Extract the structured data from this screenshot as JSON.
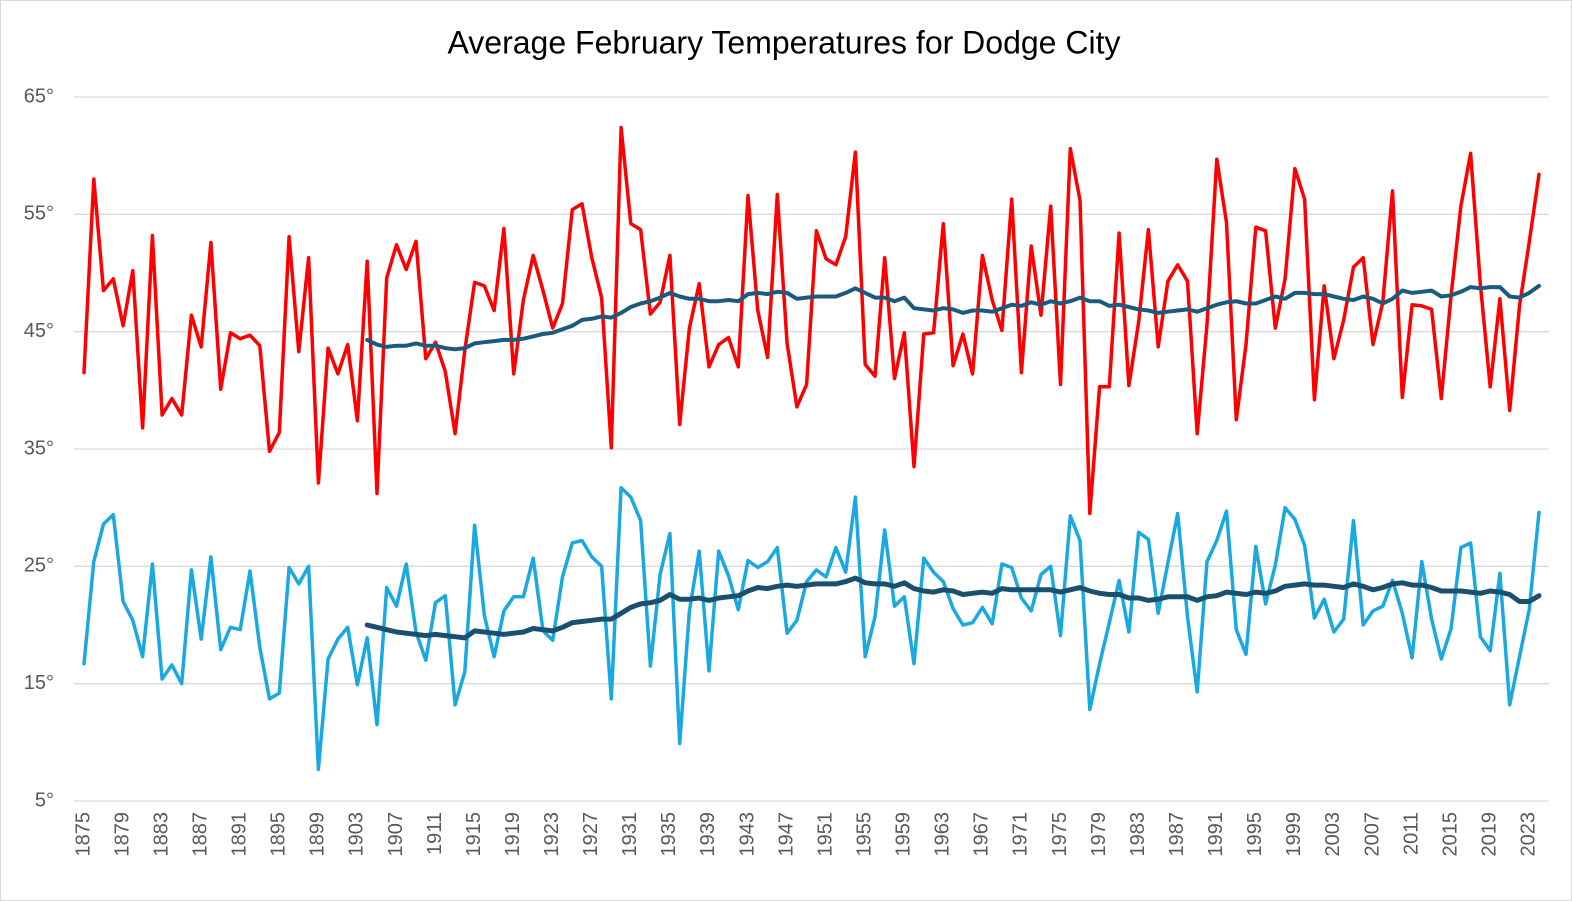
{
  "chart_data": {
    "type": "line",
    "title": "Average February  Temperatures for Dodge City",
    "x": [
      1875,
      1876,
      1877,
      1878,
      1879,
      1880,
      1881,
      1882,
      1883,
      1884,
      1885,
      1886,
      1887,
      1888,
      1889,
      1890,
      1891,
      1892,
      1893,
      1894,
      1895,
      1896,
      1897,
      1898,
      1899,
      1900,
      1901,
      1902,
      1903,
      1904,
      1905,
      1906,
      1907,
      1908,
      1909,
      1910,
      1911,
      1912,
      1913,
      1914,
      1915,
      1916,
      1917,
      1918,
      1919,
      1920,
      1921,
      1922,
      1923,
      1924,
      1925,
      1926,
      1927,
      1928,
      1929,
      1930,
      1931,
      1932,
      1933,
      1934,
      1935,
      1936,
      1937,
      1938,
      1939,
      1940,
      1941,
      1942,
      1943,
      1944,
      1945,
      1946,
      1947,
      1948,
      1949,
      1950,
      1951,
      1952,
      1953,
      1954,
      1955,
      1956,
      1957,
      1958,
      1959,
      1960,
      1961,
      1962,
      1963,
      1964,
      1965,
      1966,
      1967,
      1968,
      1969,
      1970,
      1971,
      1972,
      1973,
      1974,
      1975,
      1976,
      1977,
      1978,
      1979,
      1980,
      1981,
      1982,
      1983,
      1984,
      1985,
      1986,
      1987,
      1988,
      1989,
      1990,
      1991,
      1992,
      1993,
      1994,
      1995,
      1996,
      1997,
      1998,
      1999,
      2000,
      2001,
      2002,
      2003,
      2004,
      2005,
      2006,
      2007,
      2008,
      2009,
      2010,
      2011,
      2012,
      2013,
      2014,
      2015,
      2016,
      2017,
      2018,
      2019,
      2020,
      2021,
      2022,
      2023,
      2024
    ],
    "xlim": [
      1875,
      2024
    ],
    "xticks": [
      1875,
      1879,
      1883,
      1887,
      1891,
      1895,
      1899,
      1903,
      1907,
      1911,
      1915,
      1919,
      1923,
      1927,
      1931,
      1935,
      1939,
      1943,
      1947,
      1951,
      1955,
      1959,
      1963,
      1967,
      1971,
      1975,
      1979,
      1983,
      1987,
      1991,
      1995,
      1999,
      2003,
      2007,
      2011,
      2015,
      2019,
      2023
    ],
    "ylim": [
      5,
      65
    ],
    "yticks": [
      {
        "value": 5,
        "label": "5°"
      },
      {
        "value": 15,
        "label": "15°"
      },
      {
        "value": 25,
        "label": "25°"
      },
      {
        "value": 35,
        "label": "35°"
      },
      {
        "value": 45,
        "label": "45°"
      },
      {
        "value": 55,
        "label": "55°"
      },
      {
        "value": 65,
        "label": "65°"
      }
    ],
    "grid": true,
    "series": [
      {
        "color": "#ff0000",
        "width": 3.5,
        "values": [
          41.5,
          58,
          48.5,
          49.5,
          45.5,
          50.2,
          36.8,
          53.2,
          37.9,
          39.3,
          37.9,
          46.4,
          43.7,
          52.6,
          40.1,
          44.9,
          44.4,
          44.7,
          43.8,
          34.8,
          36.4,
          53.1,
          43.3,
          51.3,
          32.1,
          43.6,
          41.4,
          43.9,
          37.4,
          51,
          31.2,
          49.6,
          52.4,
          50.3,
          52.7,
          42.7,
          44.1,
          41.6,
          36.3,
          43.4,
          49.2,
          48.9,
          46.8,
          53.8,
          41.4,
          47.7,
          51.5,
          48.5,
          45.3,
          47.4,
          55.4,
          55.9,
          51.3,
          47.9,
          35.1,
          62.4,
          54.2,
          53.7,
          46.5,
          47.5,
          51.5,
          37.1,
          45.3,
          49.1,
          42,
          43.9,
          44.5,
          42,
          56.6,
          46.8,
          42.8,
          56.7,
          44,
          38.6,
          40.5,
          53.6,
          51.2,
          50.7,
          53.1,
          60.3,
          42.2,
          41.2,
          51.3,
          41,
          44.9,
          33.5,
          44.8,
          44.9,
          54.2,
          42.1,
          44.8,
          41.4,
          51.5,
          47.7,
          45.1,
          56.3,
          41.5,
          52.3,
          46.4,
          55.7,
          40.5,
          60.6,
          56.2,
          29.5,
          40.3,
          40.3,
          53.4,
          40.4,
          45.8,
          53.7,
          43.7,
          49.3,
          50.7,
          49.3,
          36.3,
          45.6,
          59.7,
          54.3,
          37.5,
          43.9,
          53.9,
          53.6,
          45.3,
          49.5,
          58.9,
          56.3,
          39.2,
          48.9,
          42.7,
          46,
          50.5,
          51.3,
          43.9,
          47.5,
          57,
          39.4,
          47.3,
          47.2,
          46.9,
          39.3,
          48.1,
          55.7,
          60.2,
          49,
          40.3,
          47.8,
          38.3,
          47.2,
          52.6,
          58.4
        ]
      },
      {
        "color": "#19a9e0",
        "width": 3.5,
        "values": [
          16.7,
          25.4,
          28.6,
          29.4,
          22,
          20.4,
          17.3,
          25.2,
          15.4,
          16.6,
          15,
          24.7,
          18.8,
          25.8,
          17.9,
          19.8,
          19.6,
          24.6,
          18.1,
          13.7,
          14.2,
          24.9,
          23.5,
          25,
          7.7,
          17.1,
          18.8,
          19.8,
          14.9,
          18.9,
          11.5,
          23.2,
          21.6,
          25.2,
          19.4,
          17,
          21.9,
          22.5,
          13.2,
          16,
          28.5,
          20.8,
          17.3,
          21.2,
          22.4,
          22.4,
          25.7,
          19.5,
          18.7,
          24.1,
          27,
          27.2,
          25.8,
          25,
          13.7,
          31.7,
          30.9,
          28.9,
          16.5,
          24.3,
          27.8,
          9.9,
          21.2,
          26.3,
          16.1,
          26.3,
          24.2,
          21.3,
          25.5,
          24.9,
          25.4,
          26.6,
          19.3,
          20.4,
          23.7,
          24.7,
          24.1,
          26.6,
          24.5,
          30.9,
          17.3,
          20.7,
          28.1,
          21.6,
          22.4,
          16.7,
          25.7,
          24.5,
          23.7,
          21.4,
          20,
          20.2,
          21.5,
          20.1,
          25.2,
          24.9,
          22.3,
          21.2,
          24.3,
          25,
          19.1,
          29.3,
          27.2,
          12.8,
          16.7,
          20.2,
          23.8,
          19.4,
          27.9,
          27.3,
          21,
          25.3,
          29.5,
          20.7,
          14.3,
          25.4,
          27.2,
          29.7,
          19.6,
          17.5,
          26.7,
          21.8,
          25.1,
          30,
          29,
          26.8,
          20.6,
          22.2,
          19.4,
          20.5,
          28.9,
          20,
          21.2,
          21.6,
          23.8,
          21,
          17.2,
          25.4,
          20.5,
          17.1,
          19.7,
          26.6,
          27,
          19,
          17.8,
          24.4,
          13.2,
          17.3,
          21.3,
          29.6
        ]
      },
      {
        "color": "#1b5a7c",
        "width": 4,
        "values": [
          null,
          null,
          null,
          null,
          null,
          null,
          null,
          null,
          null,
          null,
          null,
          null,
          null,
          null,
          null,
          null,
          null,
          null,
          null,
          null,
          null,
          null,
          null,
          null,
          null,
          null,
          null,
          null,
          null,
          44.3,
          43.9,
          43.7,
          43.8,
          43.8,
          44.0,
          43.8,
          43.8,
          43.6,
          43.5,
          43.6,
          44.0,
          44.1,
          44.2,
          44.3,
          44.3,
          44.4,
          44.6,
          44.8,
          44.9,
          45.2,
          45.5,
          46.0,
          46.1,
          46.3,
          46.2,
          46.6,
          47.1,
          47.4,
          47.6,
          47.9,
          48.3,
          48.0,
          47.8,
          47.8,
          47.6,
          47.6,
          47.7,
          47.6,
          48.2,
          48.3,
          48.2,
          48.4,
          48.3,
          47.8,
          47.9,
          48.0,
          48.0,
          48.0,
          48.3,
          48.7,
          48.3,
          47.9,
          47.9,
          47.6,
          47.9,
          47.0,
          46.9,
          46.8,
          47.0,
          46.9,
          46.6,
          46.8,
          46.8,
          46.7,
          47.0,
          47.3,
          47.2,
          47.5,
          47.3,
          47.6,
          47.4,
          47.6,
          47.9,
          47.6,
          47.6,
          47.2,
          47.3,
          47.1,
          46.9,
          46.8,
          46.6,
          46.7,
          46.8,
          46.9,
          46.7,
          47.0,
          47.3,
          47.5,
          47.6,
          47.4,
          47.4,
          47.7,
          48.0,
          47.8,
          48.3,
          48.3,
          48.2,
          48.2,
          48.0,
          47.8,
          47.7,
          48.0,
          47.8,
          47.4,
          47.8,
          48.5,
          48.3,
          48.4,
          48.5,
          48.0,
          48.1,
          48.4,
          48.8,
          48.7,
          48.8,
          48.8,
          48.0,
          47.9,
          48.3,
          48.9
        ]
      },
      {
        "color": "#1b4f6e",
        "width": 5,
        "values": [
          null,
          null,
          null,
          null,
          null,
          null,
          null,
          null,
          null,
          null,
          null,
          null,
          null,
          null,
          null,
          null,
          null,
          null,
          null,
          null,
          null,
          null,
          null,
          null,
          null,
          null,
          null,
          null,
          null,
          20.0,
          19.8,
          19.6,
          19.4,
          19.3,
          19.2,
          19.1,
          19.2,
          19.1,
          19.0,
          18.9,
          19.5,
          19.4,
          19.3,
          19.2,
          19.3,
          19.4,
          19.7,
          19.6,
          19.5,
          19.8,
          20.2,
          20.3,
          20.4,
          20.5,
          20.5,
          21.0,
          21.5,
          21.8,
          21.9,
          22.1,
          22.6,
          22.2,
          22.2,
          22.3,
          22.1,
          22.3,
          22.4,
          22.5,
          22.9,
          23.2,
          23.1,
          23.3,
          23.4,
          23.3,
          23.4,
          23.5,
          23.5,
          23.5,
          23.7,
          24.0,
          23.6,
          23.5,
          23.5,
          23.3,
          23.6,
          23.1,
          22.9,
          22.8,
          23.0,
          22.9,
          22.6,
          22.7,
          22.8,
          22.7,
          23.1,
          23.0,
          23.0,
          23.0,
          23.0,
          23.0,
          22.8,
          23.0,
          23.2,
          22.9,
          22.7,
          22.6,
          22.6,
          22.3,
          22.3,
          22.1,
          22.2,
          22.4,
          22.4,
          22.4,
          22.1,
          22.4,
          22.5,
          22.8,
          22.7,
          22.6,
          22.8,
          22.7,
          22.9,
          23.3,
          23.4,
          23.5,
          23.4,
          23.4,
          23.3,
          23.2,
          23.5,
          23.3,
          23.0,
          23.2,
          23.5,
          23.6,
          23.4,
          23.4,
          23.2,
          22.9,
          22.9,
          22.9,
          22.8,
          22.7,
          22.9,
          22.8,
          22.6,
          22.0,
          22.0,
          22.5
        ]
      }
    ]
  }
}
